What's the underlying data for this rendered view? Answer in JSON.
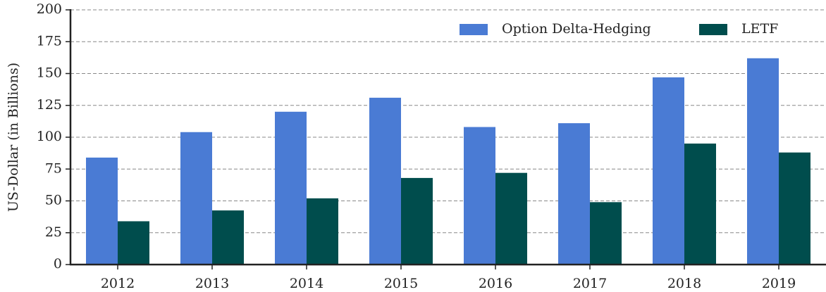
{
  "chart_data": {
    "type": "bar",
    "ylabel": "US-Dollar (in Billions)",
    "categories": [
      "2012",
      "2013",
      "2014",
      "2015",
      "2016",
      "2017",
      "2018",
      "2019"
    ],
    "series": [
      {
        "name": "Option Delta-Hedging",
        "color": "#4a7bd4",
        "values": [
          84,
          104,
          120,
          131,
          108,
          111,
          147,
          162
        ]
      },
      {
        "name": "LETF",
        "color": "#004d4d",
        "values": [
          34,
          42.5,
          52,
          68,
          72,
          49,
          95,
          88
        ]
      }
    ],
    "ylim": [
      0,
      200
    ],
    "yticks": [
      0,
      25,
      50,
      75,
      100,
      125,
      150,
      175,
      200
    ],
    "grid": true,
    "legend": "upper right"
  }
}
